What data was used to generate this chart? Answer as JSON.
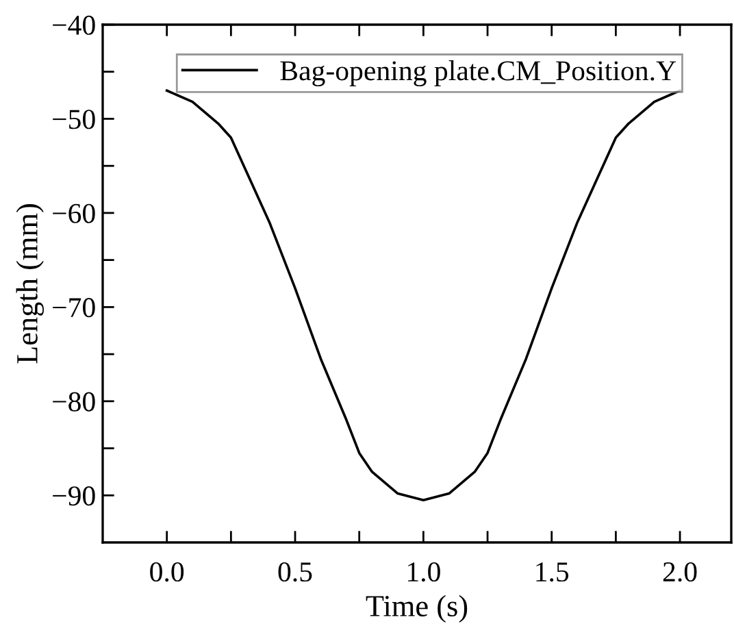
{
  "chart_data": {
    "type": "line",
    "xlabel": "Time (s)",
    "ylabel": "Length (mm)",
    "x": [
      0,
      0.1,
      0.2,
      0.25,
      0.3,
      0.4,
      0.5,
      0.6,
      0.7,
      0.75,
      0.8,
      0.9,
      1.0,
      1.1,
      1.2,
      1.25,
      1.3,
      1.4,
      1.5,
      1.6,
      1.7,
      1.75,
      1.8,
      1.9,
      2.0
    ],
    "series": [
      {
        "name": "Bag-opening plate.CM_Position.Y",
        "color": "#000000",
        "values": [
          -47,
          -48.2,
          -50.5,
          -52,
          -55,
          -61,
          -68,
          -75.5,
          -82,
          -85.5,
          -87.5,
          -89.8,
          -90.5,
          -89.8,
          -87.5,
          -85.5,
          -82,
          -75.5,
          -68,
          -61,
          -55,
          -52,
          -50.5,
          -48.2,
          -47
        ]
      }
    ],
    "xlim": [
      -0.25,
      2.2
    ],
    "ylim": [
      -95,
      -40
    ],
    "xticks": [
      {
        "value": 0,
        "label": "0.0"
      },
      {
        "value": 0.25,
        "label": null
      },
      {
        "value": 0.5,
        "label": "0.5"
      },
      {
        "value": 0.75,
        "label": null
      },
      {
        "value": 1,
        "label": "1.0"
      },
      {
        "value": 1.25,
        "label": null
      },
      {
        "value": 1.5,
        "label": "1.5"
      },
      {
        "value": 1.75,
        "label": null
      },
      {
        "value": 2,
        "label": "2.0"
      }
    ],
    "yticks": [
      {
        "value": -90,
        "label": "−90"
      },
      {
        "value": -85,
        "label": null
      },
      {
        "value": -80,
        "label": "−80"
      },
      {
        "value": -75,
        "label": null
      },
      {
        "value": -70,
        "label": "−70"
      },
      {
        "value": -65,
        "label": null
      },
      {
        "value": -60,
        "label": "−60"
      },
      {
        "value": -55,
        "label": null
      },
      {
        "value": -50,
        "label": "−50"
      },
      {
        "value": -45,
        "label": null
      },
      {
        "value": -40,
        "label": "−40"
      }
    ],
    "legend": "top",
    "grid": false,
    "marker": "none",
    "line_style": "solid"
  }
}
